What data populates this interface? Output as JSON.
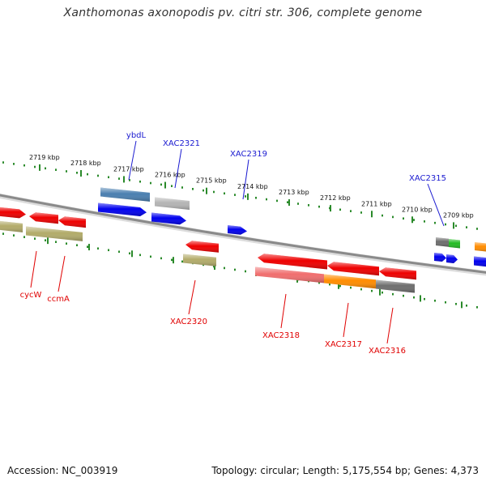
{
  "header": {
    "title": "Xanthomonas axonopodis pv. citri str. 306, complete genome"
  },
  "footer": {
    "accession": "Accession: NC_003919",
    "summary": "Topology: circular; Length: 5,175,554 bp; Genes: 4,373"
  },
  "colors": {
    "backbone": "#8a8a8a",
    "ruler_dots": "#2a8a2a",
    "label_plus": "#1a1ad0",
    "label_minus": "#e00000",
    "red": "#ee0000",
    "blue": "#0000ee",
    "steelblue": "#4a7fb0",
    "silver": "#b4b4b4",
    "olive": "#b2ab6a",
    "salmon": "#f06e6e",
    "orange": "#ff8c00",
    "gray": "#6e6e6e",
    "green": "#22bb22"
  },
  "ruler": {
    "ticks": [
      {
        "label": "2719 kbp"
      },
      {
        "label": "2718 kbp"
      },
      {
        "label": "2717 kbp"
      },
      {
        "label": "2716 kbp"
      },
      {
        "label": "2715 kbp"
      },
      {
        "label": "2714 kbp"
      },
      {
        "label": "2713 kbp"
      },
      {
        "label": "2712 kbp"
      },
      {
        "label": "2711 kbp"
      },
      {
        "label": "2710 kbp"
      },
      {
        "label": "2709 kbp"
      }
    ]
  },
  "gene_labels": {
    "ybdL": "ybdL",
    "XAC2321": "XAC2321",
    "XAC2319": "XAC2319",
    "XAC2315": "XAC2315",
    "cycW": "cycW",
    "ccmA": "ccmA",
    "XAC2320": "XAC2320",
    "XAC2318": "XAC2318",
    "XAC2317": "XAC2317",
    "XAC2316": "XAC2316"
  }
}
